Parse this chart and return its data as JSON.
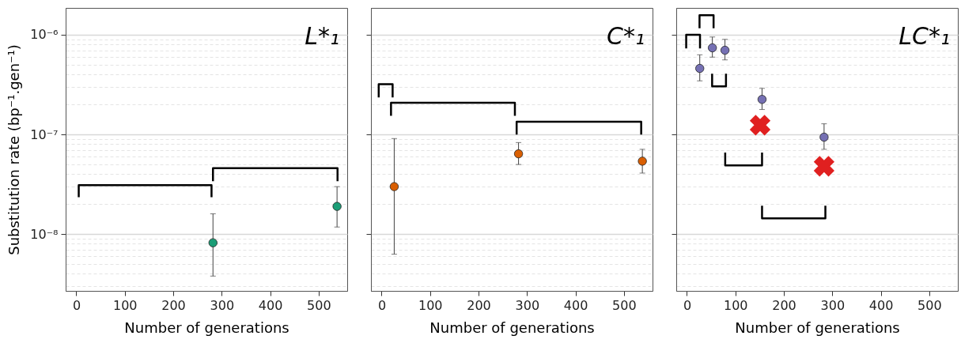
{
  "chart_data": [
    {
      "type": "scatter",
      "title": "L*₁",
      "xlabel": "Number of generations",
      "ylabel": "Substitution rate (bp⁻¹.gen⁻¹)",
      "log": "y",
      "grid": "y",
      "xlim": [
        -22,
        559
      ],
      "xticks": [
        0,
        100,
        200,
        300,
        400,
        500
      ],
      "ylim": [
        2.7e-09,
        1.86e-06
      ],
      "yticks": [
        {
          "value": 3e-09,
          "label": null
        },
        {
          "value": 4e-09,
          "label": null
        },
        {
          "value": 5e-09,
          "label": null
        },
        {
          "value": 6e-09,
          "label": null
        },
        {
          "value": 7e-09,
          "label": null
        },
        {
          "value": 8e-09,
          "label": null
        },
        {
          "value": 9e-09,
          "label": null
        },
        {
          "value": 1e-08,
          "label": "10⁻⁸"
        },
        {
          "value": 2e-08,
          "label": null
        },
        {
          "value": 3e-08,
          "label": null
        },
        {
          "value": 4e-08,
          "label": null
        },
        {
          "value": 5e-08,
          "label": null
        },
        {
          "value": 6e-08,
          "label": null
        },
        {
          "value": 7e-08,
          "label": null
        },
        {
          "value": 8e-08,
          "label": null
        },
        {
          "value": 9e-08,
          "label": null
        },
        {
          "value": 1e-07,
          "label": "10⁻⁷"
        },
        {
          "value": 2e-07,
          "label": null
        },
        {
          "value": 3e-07,
          "label": null
        },
        {
          "value": 4e-07,
          "label": null
        },
        {
          "value": 5e-07,
          "label": null
        },
        {
          "value": 6e-07,
          "label": null
        },
        {
          "value": 7e-07,
          "label": null
        },
        {
          "value": 8e-07,
          "label": null
        },
        {
          "value": 9e-07,
          "label": null
        },
        {
          "value": 1e-06,
          "label": "10⁻⁶"
        }
      ],
      "series": [
        {
          "type": "scatter",
          "marker": "circle",
          "color": "#1b9e77",
          "x": [
            282,
            538
          ],
          "values": [
            8.2e-09,
            1.9e-08
          ],
          "errors": [
            [
              3.8e-09,
              1.6e-08
            ],
            [
              1.18e-08,
              3e-08
            ]
          ]
        },
        {
          "type": "line",
          "color": "#000000",
          "x": [
            5,
            5,
            279,
            279
          ],
          "values": [
            2.35e-08,
            3.1e-08,
            3.1e-08,
            2.35e-08
          ]
        },
        {
          "type": "line",
          "color": "#000000",
          "x": [
            282,
            282,
            539,
            539
          ],
          "values": [
            3.4e-08,
            4.6e-08,
            4.6e-08,
            3.4e-08
          ]
        }
      ]
    },
    {
      "type": "scatter",
      "title": "C*₁",
      "xlabel": "Number of generations",
      "log": "y",
      "grid": "y",
      "tick_labels": "x",
      "xlim": [
        -22,
        559
      ],
      "xticks": [
        0,
        100,
        200,
        300,
        400,
        500
      ],
      "ylim": [
        2.7e-09,
        1.86e-06
      ],
      "yticks": [
        {
          "value": 3e-09,
          "label": null
        },
        {
          "value": 4e-09,
          "label": null
        },
        {
          "value": 5e-09,
          "label": null
        },
        {
          "value": 6e-09,
          "label": null
        },
        {
          "value": 7e-09,
          "label": null
        },
        {
          "value": 8e-09,
          "label": null
        },
        {
          "value": 9e-09,
          "label": null
        },
        {
          "value": 1e-08,
          "label": null
        },
        {
          "value": 2e-08,
          "label": null
        },
        {
          "value": 3e-08,
          "label": null
        },
        {
          "value": 4e-08,
          "label": null
        },
        {
          "value": 5e-08,
          "label": null
        },
        {
          "value": 6e-08,
          "label": null
        },
        {
          "value": 7e-08,
          "label": null
        },
        {
          "value": 8e-08,
          "label": null
        },
        {
          "value": 9e-08,
          "label": null
        },
        {
          "value": 1e-07,
          "label": null
        },
        {
          "value": 2e-07,
          "label": null
        },
        {
          "value": 3e-07,
          "label": null
        },
        {
          "value": 4e-07,
          "label": null
        },
        {
          "value": 5e-07,
          "label": null
        },
        {
          "value": 6e-07,
          "label": null
        },
        {
          "value": 7e-07,
          "label": null
        },
        {
          "value": 8e-07,
          "label": null
        },
        {
          "value": 9e-07,
          "label": null
        },
        {
          "value": 1e-06,
          "label": null
        }
      ],
      "series": [
        {
          "type": "scatter",
          "marker": "circle",
          "color": "#d95f02",
          "x": [
            26,
            282.5,
            538
          ],
          "values": [
            3e-08,
            6.4e-08,
            5.4e-08
          ],
          "errors": [
            [
              6.3e-09,
              9.1e-08
            ],
            [
              5e-08,
              8.3e-08
            ],
            [
              4.1e-08,
              7.1e-08
            ]
          ]
        },
        {
          "type": "line",
          "color": "#000000",
          "x": [
            -6,
            -6,
            22.7,
            22.7
          ],
          "values": [
            2.35e-07,
            3.19e-07,
            3.19e-07,
            2.35e-07
          ]
        },
        {
          "type": "line",
          "color": "#000000",
          "x": [
            19.4,
            19.4,
            275,
            275
          ],
          "values": [
            1.54e-07,
            2.08e-07,
            2.08e-07,
            1.54e-07
          ]
        },
        {
          "type": "line",
          "color": "#000000",
          "x": [
            278.6,
            278.6,
            535.6,
            535.6
          ],
          "values": [
            1e-07,
            1.34e-07,
            1.34e-07,
            1e-07
          ]
        }
      ]
    },
    {
      "type": "scatter",
      "title": "LC*₁",
      "xlabel": "Number of generations",
      "log": "y",
      "grid": "y",
      "tick_labels": "x",
      "xlim": [
        -22,
        559
      ],
      "xticks": [
        0,
        100,
        200,
        300,
        400,
        500
      ],
      "ylim": [
        2.7e-09,
        1.86e-06
      ],
      "yticks": [
        {
          "value": 3e-09,
          "label": null
        },
        {
          "value": 4e-09,
          "label": null
        },
        {
          "value": 5e-09,
          "label": null
        },
        {
          "value": 6e-09,
          "label": null
        },
        {
          "value": 7e-09,
          "label": null
        },
        {
          "value": 8e-09,
          "label": null
        },
        {
          "value": 9e-09,
          "label": null
        },
        {
          "value": 1e-08,
          "label": null
        },
        {
          "value": 2e-08,
          "label": null
        },
        {
          "value": 3e-08,
          "label": null
        },
        {
          "value": 4e-08,
          "label": null
        },
        {
          "value": 5e-08,
          "label": null
        },
        {
          "value": 6e-08,
          "label": null
        },
        {
          "value": 7e-08,
          "label": null
        },
        {
          "value": 8e-08,
          "label": null
        },
        {
          "value": 9e-08,
          "label": null
        },
        {
          "value": 1e-07,
          "label": null
        },
        {
          "value": 2e-07,
          "label": null
        },
        {
          "value": 3e-07,
          "label": null
        },
        {
          "value": 4e-07,
          "label": null
        },
        {
          "value": 5e-07,
          "label": null
        },
        {
          "value": 6e-07,
          "label": null
        },
        {
          "value": 7e-07,
          "label": null
        },
        {
          "value": 8e-07,
          "label": null
        },
        {
          "value": 9e-07,
          "label": null
        },
        {
          "value": 1e-06,
          "label": null
        }
      ],
      "series": [
        {
          "type": "scatter",
          "marker": "circle",
          "color": "#7570b3",
          "x": [
            26.5,
            52.5,
            78.5,
            155,
            283
          ],
          "values": [
            4.6e-07,
            7.4e-07,
            7e-07,
            2.25e-07,
            9.4e-08
          ],
          "errors": [
            [
              3.45e-07,
              6.3e-07
            ],
            [
              5.97e-07,
              9.5e-07
            ],
            [
              5.6e-07,
              9e-07
            ],
            [
              1.78e-07,
              2.9e-07
            ],
            [
              7.1e-08,
              1.28e-07
            ]
          ]
        },
        {
          "type": "scatter",
          "marker": "cross",
          "color": "#e02020",
          "x": [
            151,
            283
          ],
          "values": [
            1.24e-07,
            4.8e-08
          ]
        },
        {
          "type": "line",
          "color": "#000000",
          "x": [
            -1.5,
            -1.5,
            27,
            27
          ],
          "values": [
            7.3e-07,
            1e-06,
            1e-06,
            7.3e-07
          ]
        },
        {
          "type": "line",
          "color": "#000000",
          "x": [
            26,
            26,
            55,
            55
          ],
          "values": [
            1.16e-06,
            1.57e-06,
            1.57e-06,
            1.16e-06
          ]
        },
        {
          "type": "line",
          "color": "#000000",
          "x": [
            52,
            52,
            80.6,
            80.6
          ],
          "values": [
            4.07e-07,
            3.04e-07,
            3.04e-07,
            4.07e-07
          ]
        },
        {
          "type": "line",
          "color": "#000000",
          "x": [
            79,
            79,
            155,
            155
          ],
          "values": [
            6.6e-08,
            4.9e-08,
            4.9e-08,
            6.6e-08
          ]
        },
        {
          "type": "line",
          "color": "#000000",
          "x": [
            155,
            155,
            285.7,
            285.7
          ],
          "values": [
            1.93e-08,
            1.44e-08,
            1.44e-08,
            1.93e-08
          ]
        }
      ]
    }
  ]
}
